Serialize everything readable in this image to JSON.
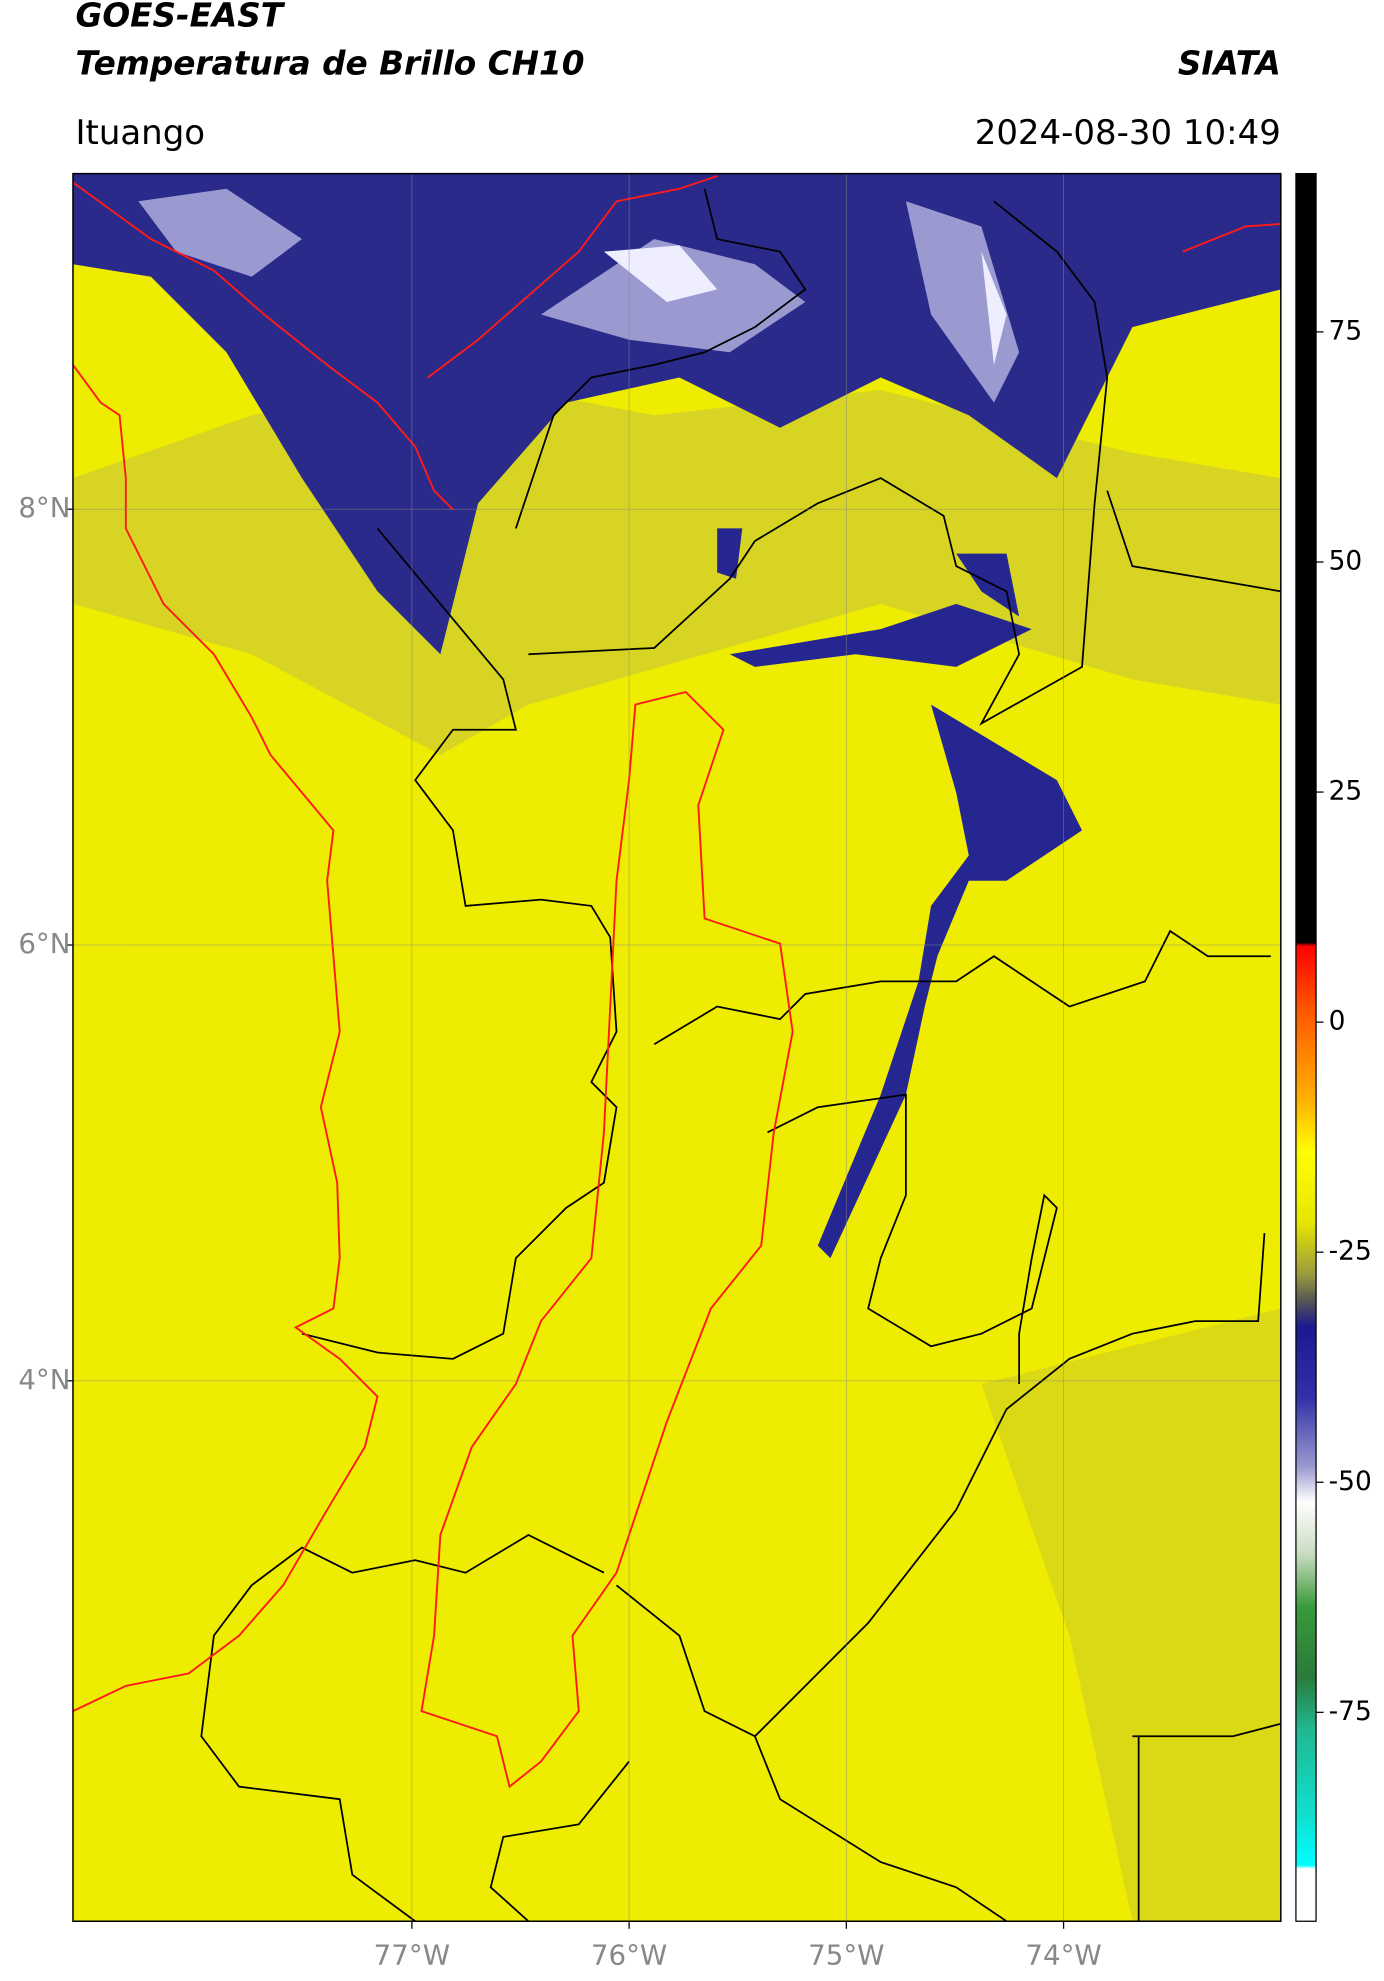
{
  "header": {
    "title": [
      "GOES-EAST",
      "Temperatura de Brillo CH10"
    ],
    "org": "SIATA",
    "subtitle": "Ituango",
    "timestamp": "2024-08-30 10:49"
  },
  "map": {
    "xlim": [
      -78.56,
      -73.0
    ],
    "ylim": [
      1.52,
      9.54
    ],
    "xticks": [
      {
        "value": -77,
        "label": "77°W"
      },
      {
        "value": -76,
        "label": "76°W"
      },
      {
        "value": -75,
        "label": "75°W"
      },
      {
        "value": -74,
        "label": "74°W"
      }
    ],
    "yticks": [
      {
        "value": 8,
        "label": "8°N"
      },
      {
        "value": 6,
        "label": "6°N"
      },
      {
        "value": 4,
        "label": "4°N"
      }
    ]
  },
  "colorbar": {
    "lim": [
      -97.7,
      92.2
    ],
    "ticks": [
      75,
      50,
      25,
      0,
      -25,
      -50,
      -75
    ]
  }
}
